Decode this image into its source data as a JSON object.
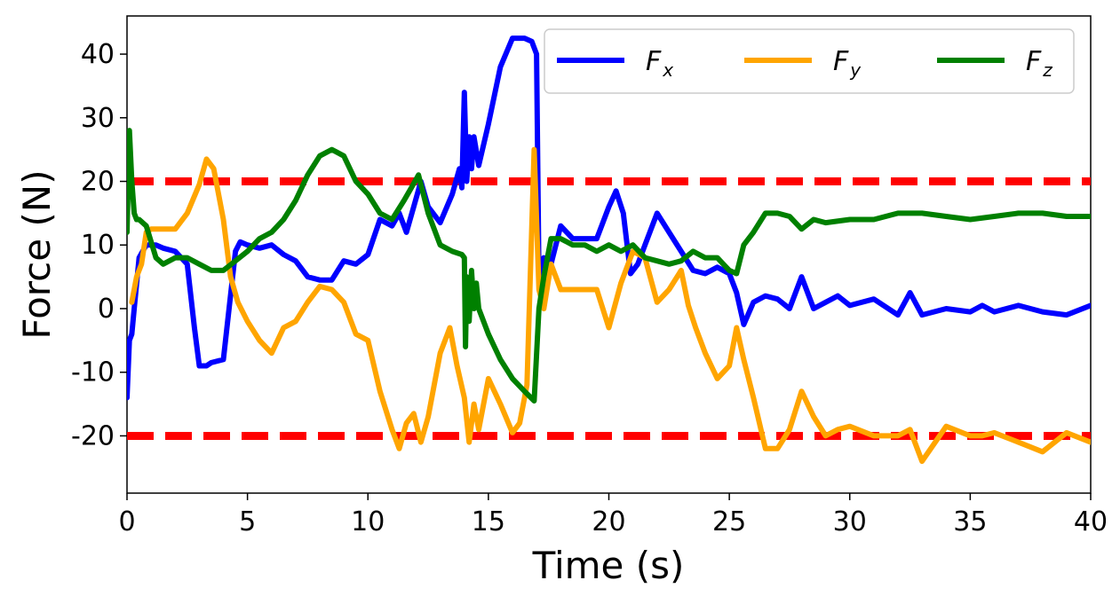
{
  "chart_data": {
    "type": "line",
    "title": "",
    "xlabel": "Time (s)",
    "ylabel": "Force (N)",
    "xlim": [
      0,
      40
    ],
    "ylim": [
      -29,
      46
    ],
    "xticks": [
      0,
      5,
      10,
      15,
      20,
      25,
      30,
      35,
      40
    ],
    "xtick_labels": [
      "0",
      "5",
      "10",
      "15",
      "20",
      "25",
      "30",
      "35",
      "40"
    ],
    "yticks": [
      -20,
      -10,
      0,
      10,
      20,
      30,
      40
    ],
    "ytick_labels": [
      "-20",
      "-10",
      "0",
      "10",
      "20",
      "30",
      "40"
    ],
    "grid": false,
    "legend": {
      "placement": "top-right",
      "columns": 3
    },
    "thresholds": [
      {
        "y": 20,
        "color": "#ff0000",
        "style": "dashed"
      },
      {
        "y": -20,
        "color": "#ff0000",
        "style": "dashed"
      }
    ],
    "series": [
      {
        "name": "F",
        "subscript": "x",
        "color": "#0000ff",
        "x": [
          0,
          0.1,
          0.2,
          0.3,
          0.5,
          0.8,
          1.2,
          1.5,
          2,
          2.5,
          2.8,
          3,
          3.3,
          3.5,
          4,
          4.5,
          4.7,
          5,
          5.5,
          6,
          6.5,
          7,
          7.5,
          8,
          8.5,
          9,
          9.5,
          10,
          10.5,
          11,
          11.3,
          11.6,
          11.9,
          12.2,
          12.5,
          13,
          13.5,
          13.8,
          13.9,
          14.0,
          14.1,
          14.2,
          14.3,
          14.4,
          14.6,
          15,
          15.5,
          16,
          16.5,
          16.8,
          17.0,
          17.1,
          17.3,
          17.6,
          18,
          18.5,
          19,
          19.5,
          20,
          20.3,
          20.6,
          20.9,
          21.2,
          21.5,
          22,
          22.5,
          23,
          23.5,
          24,
          24.5,
          25,
          25.3,
          25.6,
          26,
          26.5,
          27,
          27.5,
          28,
          28.5,
          29,
          29.5,
          30,
          31,
          32,
          32.5,
          33,
          34,
          35,
          35.5,
          36,
          37,
          38,
          39,
          40
        ],
        "y": [
          -14,
          -5,
          -4,
          0,
          8,
          10,
          10,
          9.5,
          9,
          7,
          -3,
          -9,
          -9,
          -8.5,
          -8,
          9,
          10.5,
          10,
          9.5,
          10,
          8.5,
          7.5,
          5,
          4.5,
          4.5,
          7.5,
          7,
          8.5,
          14,
          13,
          15,
          12,
          16,
          20,
          16,
          13.5,
          18,
          22,
          19,
          34,
          20,
          27,
          22,
          27,
          22.5,
          29,
          38,
          42.5,
          42.5,
          42,
          40,
          5,
          8,
          7,
          13,
          11,
          11,
          11,
          16,
          18.5,
          15,
          5.5,
          7,
          10,
          15,
          12,
          9,
          6,
          5.5,
          6.5,
          5.5,
          2.5,
          -2.5,
          1,
          2,
          1.5,
          0,
          5,
          0,
          1,
          2,
          0.5,
          1.5,
          -1,
          2.5,
          -1,
          0,
          -0.5,
          0.5,
          -0.5,
          0.5,
          -0.5,
          -1,
          0.5
        ]
      },
      {
        "name": "F",
        "subscript": "y",
        "color": "#ffa500",
        "x": [
          0.2,
          0.4,
          0.6,
          0.8,
          1,
          1.5,
          2,
          2.5,
          3,
          3.3,
          3.6,
          4,
          4.3,
          4.6,
          5,
          5.5,
          6,
          6.5,
          7,
          7.5,
          8,
          8.5,
          9,
          9.5,
          10,
          10.5,
          11,
          11.3,
          11.6,
          11.9,
          12.2,
          12.5,
          13,
          13.4,
          13.7,
          14,
          14.2,
          14.4,
          14.6,
          15,
          15.5,
          16,
          16.3,
          16.6,
          16.9,
          17.1,
          17.3,
          17.6,
          18,
          18.5,
          19,
          19.5,
          20,
          20.5,
          21,
          21.5,
          22,
          22.5,
          23,
          23.3,
          23.6,
          24,
          24.5,
          25,
          25.3,
          25.6,
          26,
          26.5,
          27,
          27.5,
          28,
          28.5,
          29,
          29.5,
          30,
          31,
          32,
          32.5,
          33,
          34,
          35,
          35.5,
          36,
          37,
          38,
          39,
          40
        ],
        "y": [
          1,
          5,
          7,
          12,
          12.5,
          12.5,
          12.5,
          15,
          19.5,
          23.5,
          22,
          14,
          5,
          1,
          -2,
          -5,
          -7,
          -3,
          -2,
          1,
          3.5,
          3,
          1,
          -4,
          -5,
          -13,
          -19,
          -22,
          -18,
          -16.5,
          -21,
          -17,
          -7,
          -3,
          -9,
          -14,
          -21,
          -15,
          -19,
          -11,
          -15,
          -19.5,
          -18,
          -12,
          25,
          3,
          0,
          7,
          3,
          3,
          3,
          3,
          -3,
          4,
          9,
          8,
          1,
          3,
          6,
          0.5,
          -3,
          -7,
          -11,
          -9,
          -3,
          -8,
          -14,
          -22,
          -22,
          -19,
          -13,
          -17,
          -20,
          -19,
          -18.5,
          -20,
          -20,
          -19,
          -24,
          -18.5,
          -20,
          -20,
          -19.5,
          -21,
          -22.5,
          -19.5,
          -21
        ]
      },
      {
        "name": "F",
        "subscript": "z",
        "color": "#008000",
        "x": [
          0,
          0.1,
          0.2,
          0.3,
          0.4,
          0.5,
          0.8,
          1.2,
          1.5,
          2,
          2.5,
          3,
          3.5,
          4,
          4.5,
          5,
          5.5,
          6,
          6.5,
          7,
          7.5,
          8,
          8.5,
          9,
          9.5,
          10,
          10.5,
          11,
          11.5,
          11.8,
          12.1,
          12.5,
          13,
          13.5,
          13.9,
          14.0,
          14.05,
          14.1,
          14.2,
          14.3,
          14.4,
          14.5,
          14.6,
          15,
          15.5,
          16,
          16.5,
          16.9,
          17.1,
          17.3,
          17.6,
          18,
          18.5,
          19,
          19.5,
          20,
          20.5,
          21,
          21.5,
          22,
          22.5,
          23,
          23.5,
          24,
          24.5,
          25,
          25.3,
          25.6,
          26,
          26.5,
          27,
          27.5,
          28,
          28.5,
          29,
          30,
          31,
          32,
          33,
          34,
          35,
          36,
          37,
          38,
          39,
          40
        ],
        "y": [
          12,
          28,
          20,
          15,
          14,
          14,
          13,
          8,
          7,
          8,
          8,
          7,
          6,
          6,
          7.5,
          9,
          11,
          12,
          14,
          17,
          21,
          24,
          25,
          24,
          20,
          18,
          15,
          14,
          17,
          19,
          21,
          15,
          10,
          9,
          8.5,
          8,
          -6,
          5,
          -2,
          6,
          0,
          4,
          0,
          -4,
          -8,
          -11,
          -13,
          -14.5,
          0,
          5,
          11,
          11,
          10,
          10,
          9,
          10,
          9,
          10,
          8,
          7.5,
          7,
          7.5,
          9,
          8,
          8,
          6,
          5.5,
          10,
          12,
          15,
          15,
          14.5,
          12.5,
          14,
          13.5,
          14,
          14,
          15,
          15,
          14.5,
          14,
          14.5,
          15,
          15,
          14.5,
          14.5
        ]
      }
    ]
  }
}
